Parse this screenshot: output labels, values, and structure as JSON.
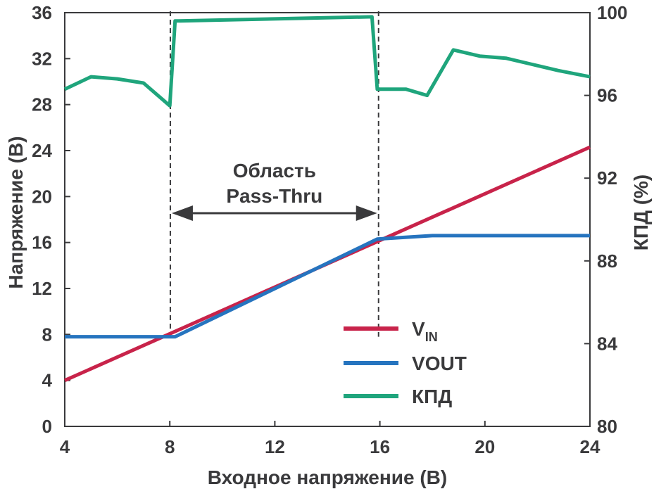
{
  "chart_data": {
    "type": "line",
    "xlabel": "Входное напряжение (В)",
    "ylabel": "Напряжение (В)",
    "y2label": "КПД (%)",
    "xlim": [
      4,
      24
    ],
    "ylim": [
      0,
      36
    ],
    "y2lim": [
      80,
      100
    ],
    "x_ticks": [
      "4",
      "8",
      "12",
      "16",
      "20",
      "24"
    ],
    "y_ticks": [
      "0",
      "4",
      "8",
      "12",
      "16",
      "20",
      "24",
      "28",
      "32",
      "36"
    ],
    "y2_ticks": [
      "80",
      "84",
      "88",
      "92",
      "96",
      "100"
    ],
    "x_tick_values": [
      4,
      8,
      12,
      16,
      20,
      24
    ],
    "y_tick_values": [
      0,
      4,
      8,
      12,
      16,
      20,
      24,
      28,
      32,
      36
    ],
    "y2_tick_values": [
      80,
      84,
      88,
      92,
      96,
      100
    ],
    "annotation": {
      "line1": "Область",
      "line2": "Pass-Thru",
      "x_start": 8.1,
      "x_end": 15.9
    },
    "legend_position": "center-right",
    "series": [
      {
        "name": "VIN",
        "label_main": "V",
        "label_sub": "IN",
        "label_sub_style": "subscript",
        "color": "#c8234a",
        "axis": "left",
        "x": [
          4,
          24
        ],
        "y": [
          4,
          24.3
        ]
      },
      {
        "name": "VOUT",
        "label_main": "V",
        "label_sub": "OUT",
        "label_sub_style": "inline",
        "color": "#2674bf",
        "axis": "left",
        "x": [
          4,
          8.2,
          15.9,
          18,
          24
        ],
        "y": [
          7.8,
          7.8,
          16.3,
          16.6,
          16.6
        ]
      },
      {
        "name": "КПД",
        "label_main": "КПД",
        "label_sub": "",
        "label_sub_style": "inline",
        "color": "#1fa57c",
        "axis": "right",
        "x": [
          4,
          5,
          6,
          7,
          8,
          8.2,
          15.7,
          15.9,
          17,
          17.8,
          18.8,
          19.8,
          20.8,
          21.8,
          22.8,
          24
        ],
        "y": [
          96.3,
          96.9,
          96.8,
          96.6,
          95.5,
          99.6,
          99.8,
          96.3,
          96.3,
          96.0,
          98.2,
          97.9,
          97.8,
          97.5,
          97.2,
          96.9
        ]
      }
    ]
  }
}
